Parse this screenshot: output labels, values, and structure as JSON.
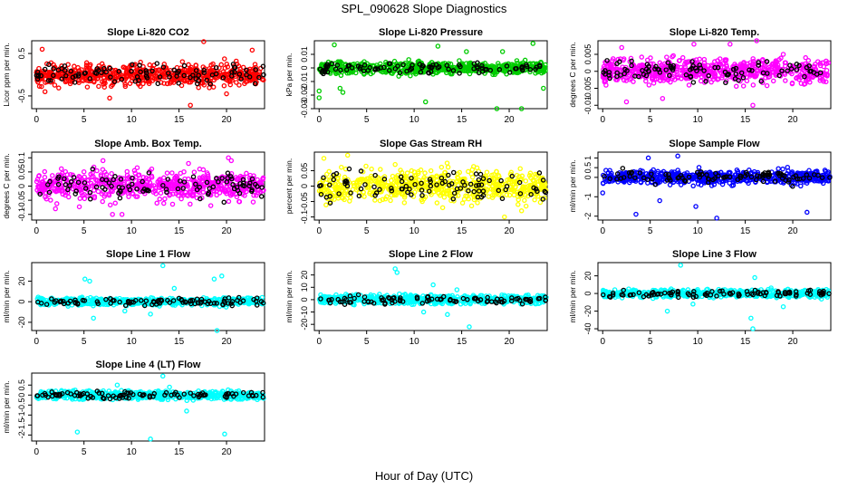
{
  "figure": {
    "title": "SPL_090628  Slope Diagnostics",
    "xlabel": "Hour of Day (UTC)"
  },
  "chart_data": [
    {
      "type": "scatter",
      "title": "Slope Li-820 CO2",
      "ylabel": "Licor ppm per min.",
      "xlim": [
        -0.5,
        24
      ],
      "ylim": [
        -0.8,
        0.8
      ],
      "x_ticks": [
        0,
        5,
        10,
        15,
        20
      ],
      "y_ticks": [
        -0.5,
        0.5
      ],
      "color": "#ff0000",
      "spread": 0.18,
      "outliers": [
        [
          0.6,
          0.6
        ],
        [
          0.9,
          -0.4
        ],
        [
          7.7,
          -0.55
        ],
        [
          17.6,
          0.78
        ],
        [
          16.2,
          -0.72
        ],
        [
          20,
          -0.45
        ],
        [
          22.7,
          0.58
        ]
      ]
    },
    {
      "type": "scatter",
      "title": "Slope Li-820 Pressure",
      "ylabel": "kPa per min.",
      "xlim": [
        -0.5,
        24
      ],
      "ylim": [
        -0.03,
        0.02
      ],
      "x_ticks": [
        0,
        5,
        10,
        15,
        20
      ],
      "y_ticks": [
        -0.03,
        -0.02,
        -0.01,
        0.0,
        0.01
      ],
      "color": "#00cc00",
      "spread": 0.003,
      "outliers": [
        [
          1.6,
          0.017
        ],
        [
          0,
          -0.017
        ],
        [
          0,
          -0.022
        ],
        [
          2.2,
          -0.015
        ],
        [
          11.2,
          -0.025
        ],
        [
          18.7,
          -0.03
        ],
        [
          19.3,
          0.012
        ],
        [
          22.5,
          0.018
        ],
        [
          23.6,
          -0.015
        ],
        [
          21.3,
          -0.03
        ],
        [
          2.5,
          -0.018
        ],
        [
          12.5,
          0.016
        ],
        [
          15.5,
          0.012
        ]
      ]
    },
    {
      "type": "scatter",
      "title": "Slope Li-820 Temp.",
      "ylabel": "degrees C per min.",
      "xlim": [
        -0.5,
        24
      ],
      "ylim": [
        -0.011,
        0.009
      ],
      "x_ticks": [
        0,
        5,
        10,
        15,
        20
      ],
      "y_ticks": [
        -0.01,
        -0.005,
        0.0,
        0.005
      ],
      "color": "#ff00ff",
      "spread": 0.0025,
      "outliers": [
        [
          2,
          0.007
        ],
        [
          2.5,
          -0.009
        ],
        [
          9.6,
          0.008
        ],
        [
          15.8,
          -0.01
        ],
        [
          16.2,
          0.009
        ],
        [
          19,
          0.005
        ],
        [
          23.5,
          0.003
        ],
        [
          6.3,
          -0.008
        ],
        [
          13.4,
          0.008
        ]
      ]
    },
    {
      "type": "scatter",
      "title": "Slope Amb. Box Temp.",
      "ylabel": "degrees C per min.",
      "xlim": [
        -0.5,
        24
      ],
      "ylim": [
        -0.12,
        0.12
      ],
      "x_ticks": [
        0,
        5,
        10,
        15,
        20
      ],
      "y_ticks": [
        -0.1,
        -0.05,
        0.0,
        0.05,
        0.1
      ],
      "color": "#ff00ff",
      "spread": 0.035,
      "outliers": [
        [
          8,
          -0.1
        ],
        [
          9,
          -0.1
        ],
        [
          20.5,
          0.09
        ],
        [
          20.2,
          0.1
        ],
        [
          2,
          -0.08
        ],
        [
          7,
          0.09
        ],
        [
          16,
          0.08
        ]
      ]
    },
    {
      "type": "scatter",
      "title": "Slope Gas Stream RH",
      "ylabel": "percent per min.",
      "xlim": [
        -0.5,
        24
      ],
      "ylim": [
        -0.11,
        0.11
      ],
      "x_ticks": [
        0,
        5,
        10,
        15,
        20
      ],
      "y_ticks": [
        -0.1,
        -0.05,
        0.0,
        0.05
      ],
      "color": "#ffff00",
      "spread": 0.035,
      "outliers": [
        [
          0.5,
          0.09
        ],
        [
          3,
          0.1
        ],
        [
          19.5,
          -0.1
        ],
        [
          21.3,
          -0.08
        ],
        [
          8,
          0.07
        ],
        [
          13,
          -0.07
        ]
      ]
    },
    {
      "type": "scatter",
      "title": "Slope Sample Flow",
      "ylabel": "ml/min per min.",
      "xlim": [
        -0.5,
        24
      ],
      "ylim": [
        -2.2,
        1.3
      ],
      "x_ticks": [
        0,
        5,
        10,
        15,
        20
      ],
      "y_ticks": [
        -2,
        -1,
        0,
        0.5,
        1
      ],
      "color": "#0000ff",
      "spread": 0.25,
      "outliers": [
        [
          0,
          -0.8
        ],
        [
          3.5,
          -1.9
        ],
        [
          12,
          -2.1
        ],
        [
          21.5,
          -1.8
        ],
        [
          4.8,
          1
        ],
        [
          7.9,
          1.1
        ],
        [
          6,
          -1.2
        ],
        [
          9.8,
          -1.5
        ]
      ]
    },
    {
      "type": "scatter",
      "title": "Slope Line 1 Flow",
      "ylabel": "ml/min per min.",
      "xlim": [
        -0.5,
        24
      ],
      "ylim": [
        -28,
        38
      ],
      "x_ticks": [
        0,
        5,
        10,
        15,
        20
      ],
      "y_ticks": [
        -20,
        0,
        20
      ],
      "color": "#00ffff",
      "spread": 2.5,
      "outliers": [
        [
          5.1,
          22
        ],
        [
          5.6,
          20
        ],
        [
          13.3,
          35
        ],
        [
          12,
          -12
        ],
        [
          19,
          -28
        ],
        [
          18.7,
          22
        ],
        [
          19.5,
          25
        ],
        [
          6,
          -16
        ],
        [
          9.3,
          -9
        ],
        [
          14.5,
          13
        ]
      ]
    },
    {
      "type": "scatter",
      "title": "Slope Line 2 Flow",
      "ylabel": "ml/min per min.",
      "xlim": [
        -0.5,
        24
      ],
      "ylim": [
        -25,
        30
      ],
      "x_ticks": [
        0,
        5,
        10,
        15,
        20
      ],
      "y_ticks": [
        -20,
        -10,
        0,
        10,
        20
      ],
      "color": "#00ffff",
      "spread": 2.5,
      "outliers": [
        [
          8,
          25
        ],
        [
          8.2,
          22
        ],
        [
          13.5,
          -12
        ],
        [
          15.8,
          -22
        ],
        [
          11,
          -10
        ],
        [
          12,
          12
        ],
        [
          14.5,
          8
        ]
      ]
    },
    {
      "type": "scatter",
      "title": "Slope Line 3 Flow",
      "ylabel": "ml/min per min.",
      "xlim": [
        -0.5,
        24
      ],
      "ylim": [
        -42,
        35
      ],
      "x_ticks": [
        0,
        5,
        10,
        15,
        20
      ],
      "y_ticks": [
        -40,
        -20,
        0,
        20
      ],
      "color": "#00ffff",
      "spread": 3,
      "outliers": [
        [
          8.2,
          32
        ],
        [
          15.8,
          -40
        ],
        [
          16,
          18
        ],
        [
          15.6,
          -28
        ],
        [
          19,
          -15
        ],
        [
          9.5,
          -12
        ],
        [
          6.8,
          -20
        ]
      ]
    },
    {
      "type": "scatter",
      "title": "Slope Line 4 (LT) Flow",
      "ylabel": "ml/min per min.",
      "xlim": [
        -0.5,
        24
      ],
      "ylim": [
        -2.3,
        1.1
      ],
      "x_ticks": [
        0,
        5,
        10,
        15,
        20
      ],
      "y_ticks": [
        -2.0,
        -1.5,
        -1.0,
        -0.5,
        0.0,
        0.5
      ],
      "color": "#00ffff",
      "spread": 0.15,
      "outliers": [
        [
          4.3,
          -1.85
        ],
        [
          12,
          -2.2
        ],
        [
          19.8,
          -1.95
        ],
        [
          13.3,
          0.95
        ],
        [
          15.8,
          -0.8
        ],
        [
          8.5,
          0.5
        ],
        [
          14,
          0.4
        ]
      ]
    }
  ]
}
